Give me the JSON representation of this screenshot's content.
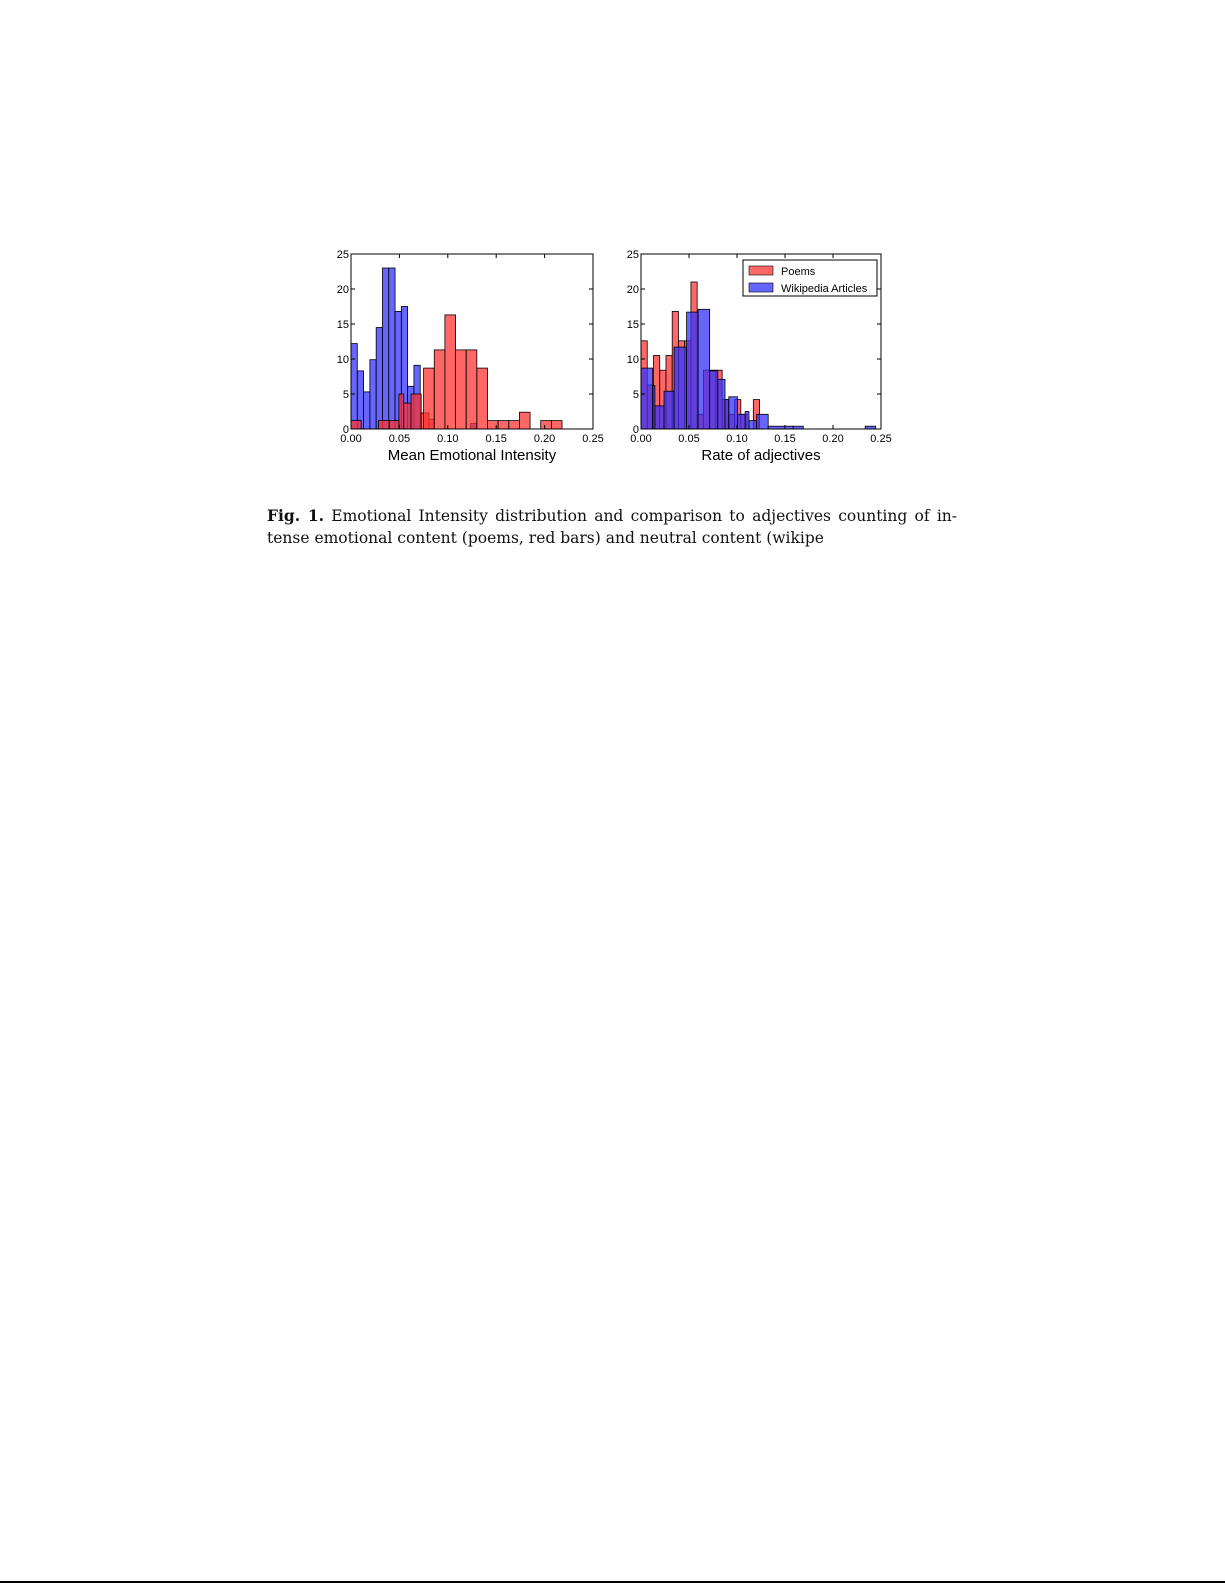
{
  "chart_data": [
    {
      "type": "bar",
      "subtype": "overlapping-histogram",
      "title": "",
      "xlabel": "Mean  Emotional Intensity",
      "ylabel": "",
      "xlim": [
        0.0,
        0.25
      ],
      "ylim": [
        0,
        25
      ],
      "xticks": [
        "0.00",
        "0.05",
        "0.10",
        "0.15",
        "0.20",
        "0.25"
      ],
      "yticks": [
        "0",
        "5",
        "10",
        "15",
        "20",
        "25"
      ],
      "grid": false,
      "legend": null,
      "series": [
        {
          "name": "Wikipedia Articles",
          "color": "#3333ff",
          "bins": [
            {
              "x0": 0.0,
              "x1": 0.0065,
              "count": 12.2
            },
            {
              "x0": 0.0065,
              "x1": 0.013,
              "count": 8.3
            },
            {
              "x0": 0.013,
              "x1": 0.0195,
              "count": 5.3
            },
            {
              "x0": 0.0195,
              "x1": 0.026,
              "count": 9.9
            },
            {
              "x0": 0.026,
              "x1": 0.0325,
              "count": 14.5
            },
            {
              "x0": 0.0325,
              "x1": 0.039,
              "count": 23.0
            },
            {
              "x0": 0.039,
              "x1": 0.0455,
              "count": 23.0
            },
            {
              "x0": 0.0455,
              "x1": 0.052,
              "count": 16.8
            },
            {
              "x0": 0.052,
              "x1": 0.0585,
              "count": 17.5
            },
            {
              "x0": 0.0585,
              "x1": 0.065,
              "count": 6.1
            },
            {
              "x0": 0.065,
              "x1": 0.0715,
              "count": 9.1
            },
            {
              "x0": 0.0715,
              "x1": 0.078,
              "count": 0
            },
            {
              "x0": 0.078,
              "x1": 0.0845,
              "count": 0
            },
            {
              "x0": 0.0845,
              "x1": 0.091,
              "count": 0
            },
            {
              "x0": 0.1235,
              "x1": 0.13,
              "count": 0.8
            }
          ]
        },
        {
          "name": "Poems",
          "color": "#ff3333",
          "bins": [
            {
              "x0": 0.0,
              "x1": 0.0105,
              "count": 1.2
            },
            {
              "x0": 0.0285,
              "x1": 0.0395,
              "count": 1.2
            },
            {
              "x0": 0.0395,
              "x1": 0.0495,
              "count": 1.2
            },
            {
              "x0": 0.0495,
              "x1": 0.0545,
              "count": 5.0
            },
            {
              "x0": 0.0545,
              "x1": 0.062,
              "count": 3.7
            },
            {
              "x0": 0.062,
              "x1": 0.0725,
              "count": 5.0
            },
            {
              "x0": 0.0725,
              "x1": 0.0805,
              "count": 2.3
            },
            {
              "x0": 0.0805,
              "x1": 0.086,
              "count": 1.4
            },
            {
              "x0": 0.075,
              "x1": 0.086,
              "count": 8.7
            },
            {
              "x0": 0.086,
              "x1": 0.097,
              "count": 11.3
            },
            {
              "x0": 0.097,
              "x1": 0.108,
              "count": 16.3
            },
            {
              "x0": 0.108,
              "x1": 0.119,
              "count": 11.3
            },
            {
              "x0": 0.119,
              "x1": 0.13,
              "count": 11.3
            },
            {
              "x0": 0.13,
              "x1": 0.141,
              "count": 8.7
            },
            {
              "x0": 0.141,
              "x1": 0.152,
              "count": 1.2
            },
            {
              "x0": 0.152,
              "x1": 0.163,
              "count": 1.2
            },
            {
              "x0": 0.163,
              "x1": 0.174,
              "count": 1.2
            },
            {
              "x0": 0.174,
              "x1": 0.185,
              "count": 2.4
            },
            {
              "x0": 0.196,
              "x1": 0.207,
              "count": 1.2
            },
            {
              "x0": 0.207,
              "x1": 0.218,
              "count": 1.2
            }
          ]
        }
      ]
    },
    {
      "type": "bar",
      "subtype": "overlapping-histogram",
      "title": "",
      "xlabel": "Rate of adjectives",
      "ylabel": "",
      "xlim": [
        0.0,
        0.25
      ],
      "ylim": [
        0,
        25
      ],
      "xticks": [
        "0.00",
        "0.05",
        "0.10",
        "0.15",
        "0.20",
        "0.25"
      ],
      "yticks": [
        "0",
        "5",
        "10",
        "15",
        "20",
        "25"
      ],
      "grid": false,
      "legend": {
        "position": "upper right",
        "entries": [
          "Poems",
          "Wikipedia Articles"
        ]
      },
      "series": [
        {
          "name": "Poems",
          "color": "#ff3333",
          "bins": [
            {
              "x0": 0.0,
              "x1": 0.0065,
              "count": 12.6
            },
            {
              "x0": 0.0065,
              "x1": 0.013,
              "count": 6.3
            },
            {
              "x0": 0.013,
              "x1": 0.0195,
              "count": 10.5
            },
            {
              "x0": 0.0195,
              "x1": 0.026,
              "count": 8.4
            },
            {
              "x0": 0.026,
              "x1": 0.0325,
              "count": 10.5
            },
            {
              "x0": 0.0325,
              "x1": 0.039,
              "count": 16.8
            },
            {
              "x0": 0.039,
              "x1": 0.0455,
              "count": 12.6
            },
            {
              "x0": 0.0455,
              "x1": 0.052,
              "count": 12.6
            },
            {
              "x0": 0.052,
              "x1": 0.0585,
              "count": 21.0
            },
            {
              "x0": 0.0585,
              "x1": 0.065,
              "count": 2.1
            },
            {
              "x0": 0.065,
              "x1": 0.0715,
              "count": 8.4
            },
            {
              "x0": 0.0715,
              "x1": 0.078,
              "count": 8.4
            },
            {
              "x0": 0.078,
              "x1": 0.0845,
              "count": 8.4
            },
            {
              "x0": 0.0845,
              "x1": 0.091,
              "count": 4.2
            },
            {
              "x0": 0.091,
              "x1": 0.0975,
              "count": 2.1
            },
            {
              "x0": 0.0975,
              "x1": 0.104,
              "count": 4.2
            },
            {
              "x0": 0.104,
              "x1": 0.1105,
              "count": 2.1
            },
            {
              "x0": 0.1105,
              "x1": 0.117,
              "count": 0
            },
            {
              "x0": 0.117,
              "x1": 0.1235,
              "count": 4.2
            }
          ]
        },
        {
          "name": "Wikipedia Articles",
          "color": "#3333ff",
          "bins": [
            {
              "x0": 0.0,
              "x1": 0.012,
              "count": 8.7
            },
            {
              "x0": 0.012,
              "x1": 0.0145,
              "count": 6.2
            },
            {
              "x0": 0.0145,
              "x1": 0.024,
              "count": 3.3
            },
            {
              "x0": 0.024,
              "x1": 0.0345,
              "count": 5.4
            },
            {
              "x0": 0.0345,
              "x1": 0.0475,
              "count": 11.7
            },
            {
              "x0": 0.0475,
              "x1": 0.0595,
              "count": 16.7
            },
            {
              "x0": 0.0595,
              "x1": 0.0715,
              "count": 17.1
            },
            {
              "x0": 0.0715,
              "x1": 0.08,
              "count": 8.3
            },
            {
              "x0": 0.08,
              "x1": 0.0875,
              "count": 7.1
            },
            {
              "x0": 0.0875,
              "x1": 0.0915,
              "count": 4.2
            },
            {
              "x0": 0.0915,
              "x1": 0.1005,
              "count": 4.6
            },
            {
              "x0": 0.1005,
              "x1": 0.1085,
              "count": 2.1
            },
            {
              "x0": 0.1085,
              "x1": 0.1125,
              "count": 2.5
            },
            {
              "x0": 0.1125,
              "x1": 0.1205,
              "count": 1.2
            },
            {
              "x0": 0.1205,
              "x1": 0.1325,
              "count": 2.1
            },
            {
              "x0": 0.1325,
              "x1": 0.1585,
              "count": 0.4
            },
            {
              "x0": 0.1585,
              "x1": 0.169,
              "count": 0.4
            },
            {
              "x0": 0.2335,
              "x1": 0.2445,
              "count": 0.4
            }
          ]
        }
      ]
    }
  ],
  "caption": {
    "label": "Fig. 1.",
    "text": "Emotional Intensity distribution and comparison to adjectives counting of in- tense emotional content (poems, red bars) and neutral content (wikipe"
  }
}
